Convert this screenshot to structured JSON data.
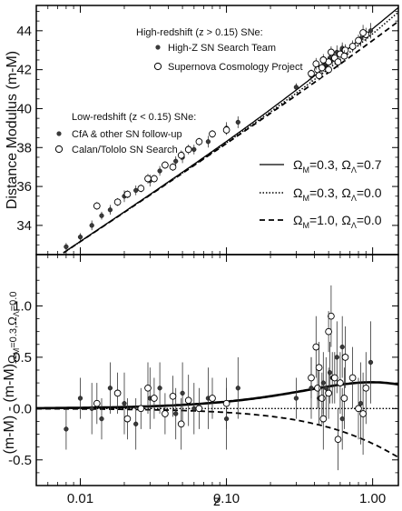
{
  "chart_data": [
    {
      "type": "scatter",
      "xscale": "log",
      "xlim": [
        0.005,
        1.5
      ],
      "ylim": [
        32.5,
        45.3
      ],
      "ylabel": "Distance Modulus (m-M)",
      "yticks": [
        34,
        36,
        38,
        40,
        42,
        44
      ],
      "grid": false,
      "legend_groups": [
        {
          "title": "High-redshift (z > 0.15) SNe:",
          "entries": [
            {
              "label": "High-Z SN Search Team",
              "marker": "filled-dot"
            },
            {
              "label": "Supernova Cosmology Project",
              "marker": "open-circle"
            }
          ]
        },
        {
          "title": "Low-redshift (z < 0.15) SNe:",
          "entries": [
            {
              "label": "CfA & other SN follow-up",
              "marker": "filled-dot"
            },
            {
              "label": "Calan/Tololo SN Search",
              "marker": "open-circle"
            }
          ]
        }
      ],
      "model_legend": [
        {
          "style": "solid",
          "label_parts": [
            "Ω",
            "M",
            "=0.3,  Ω",
            "Λ",
            "=0.7"
          ]
        },
        {
          "style": "dotted",
          "label_parts": [
            "Ω",
            "M",
            "=0.3,  Ω",
            "Λ",
            "=0.0"
          ]
        },
        {
          "style": "dashed",
          "label_parts": [
            "Ω",
            "M",
            "=1.0,  Ω",
            "Λ",
            "=0.0"
          ]
        }
      ],
      "series": [
        {
          "name": "High-Z SN Search Team",
          "marker": "filled-dot",
          "x": [
            0.43,
            0.48,
            0.51,
            0.57,
            0.62,
            0.97,
            0.3,
            0.38,
            0.46,
            0.53,
            0.62,
            0.83
          ],
          "y": [
            42.0,
            42.3,
            42.6,
            42.9,
            43.0,
            44.0,
            41.1,
            41.7,
            42.2,
            42.5,
            43.1,
            43.6
          ],
          "err": [
            0.25,
            0.3,
            0.3,
            0.35,
            0.3,
            0.4,
            0.2,
            0.3,
            0.3,
            0.25,
            0.3,
            0.4
          ]
        },
        {
          "name": "Supernova Cosmology Project",
          "marker": "open-circle",
          "x": [
            0.38,
            0.42,
            0.45,
            0.5,
            0.55,
            0.6,
            0.65,
            0.8,
            0.9,
            0.52,
            0.46,
            0.43,
            0.58,
            0.64,
            0.73,
            0.86,
            0.41,
            0.5
          ],
          "y": [
            41.8,
            42.0,
            42.1,
            42.4,
            42.6,
            42.8,
            43.0,
            43.5,
            43.8,
            42.9,
            42.5,
            41.7,
            42.4,
            42.7,
            43.2,
            43.9,
            42.3,
            42.0
          ],
          "err": [
            0.2,
            0.2,
            0.25,
            0.25,
            0.25,
            0.3,
            0.3,
            0.3,
            0.35,
            0.3,
            0.3,
            0.25,
            0.3,
            0.3,
            0.3,
            0.4,
            0.3,
            0.2
          ]
        },
        {
          "name": "CfA & other SN follow-up",
          "marker": "filled-dot",
          "x": [
            0.008,
            0.01,
            0.012,
            0.014,
            0.016,
            0.02,
            0.024,
            0.03,
            0.035,
            0.045,
            0.05,
            0.06,
            0.075,
            0.1,
            0.12
          ],
          "y": [
            32.9,
            33.4,
            34.0,
            34.5,
            34.8,
            35.5,
            35.8,
            36.3,
            36.8,
            37.3,
            37.5,
            37.9,
            38.3,
            39.0,
            39.3
          ],
          "err": [
            0.2,
            0.2,
            0.25,
            0.2,
            0.25,
            0.3,
            0.25,
            0.3,
            0.25,
            0.25,
            0.3,
            0.25,
            0.3,
            0.3,
            0.3
          ]
        },
        {
          "name": "Calan/Tololo SN Search",
          "marker": "open-circle",
          "x": [
            0.013,
            0.018,
            0.021,
            0.026,
            0.029,
            0.032,
            0.038,
            0.043,
            0.049,
            0.055,
            0.065,
            0.08,
            0.1
          ],
          "y": [
            35.0,
            35.2,
            35.6,
            35.9,
            36.4,
            36.4,
            37.1,
            37.0,
            37.6,
            37.9,
            38.3,
            38.7,
            38.9
          ],
          "err": [
            0.2,
            0.2,
            0.2,
            0.2,
            0.25,
            0.2,
            0.2,
            0.2,
            0.25,
            0.25,
            0.2,
            0.2,
            0.25
          ]
        }
      ]
    },
    {
      "type": "scatter",
      "xscale": "log",
      "xlim": [
        0.005,
        1.5
      ],
      "ylim": [
        -0.75,
        1.5
      ],
      "xlabel": "z",
      "xticks": [
        0.01,
        0.1,
        1.0
      ],
      "xtick_labels": [
        "0.01",
        "0.10",
        "1.00"
      ],
      "yticks": [
        -0.5,
        0.0,
        0.5,
        1.0
      ],
      "ytick_labels": [
        "-0.5",
        "0.0",
        "0.5",
        "1.0"
      ],
      "ylabel_parts": [
        "(m-M) - (m-M)",
        "Ω",
        "M",
        "=0.3,",
        "Ω",
        "Λ",
        "=0.0"
      ],
      "grid": false,
      "series": [
        {
          "name": "High-Z SN Search Team",
          "marker": "filled-dot",
          "x": [
            0.43,
            0.48,
            0.51,
            0.57,
            0.62,
            0.97,
            0.3,
            0.38,
            0.46,
            0.53,
            0.62,
            0.83
          ],
          "y": [
            0.1,
            0.2,
            0.35,
            0.5,
            -0.1,
            0.45,
            0.1,
            0.2,
            0.25,
            0.3,
            0.6,
            0.05
          ],
          "err": [
            0.25,
            0.3,
            0.3,
            0.35,
            0.3,
            0.4,
            0.2,
            0.3,
            0.3,
            0.25,
            0.3,
            0.4
          ]
        },
        {
          "name": "Supernova Cosmology Project",
          "marker": "open-circle",
          "x": [
            0.38,
            0.42,
            0.45,
            0.5,
            0.55,
            0.6,
            0.65,
            0.8,
            0.9,
            0.52,
            0.46,
            0.43,
            0.58,
            0.64,
            0.73,
            0.86,
            0.41,
            0.5
          ],
          "y": [
            0.3,
            0.2,
            0.1,
            0.15,
            0.3,
            0.25,
            0.5,
            0.0,
            0.2,
            0.9,
            -0.1,
            0.4,
            -0.3,
            0.1,
            0.3,
            -0.05,
            0.6,
            0.75
          ],
          "err": [
            0.2,
            0.2,
            0.25,
            0.25,
            0.25,
            0.3,
            0.3,
            0.3,
            0.35,
            0.3,
            0.3,
            0.25,
            0.3,
            0.3,
            0.3,
            0.4,
            0.3,
            0.2
          ]
        },
        {
          "name": "CfA & other SN follow-up",
          "marker": "filled-dot",
          "x": [
            0.008,
            0.01,
            0.012,
            0.014,
            0.016,
            0.02,
            0.024,
            0.03,
            0.035,
            0.045,
            0.05,
            0.06,
            0.075,
            0.1,
            0.12
          ],
          "y": [
            -0.2,
            0.1,
            0.0,
            -0.1,
            0.2,
            0.05,
            -0.15,
            0.1,
            0.2,
            -0.05,
            0.15,
            0.0,
            0.1,
            -0.1,
            0.2
          ],
          "err": [
            0.2,
            0.2,
            0.25,
            0.2,
            0.25,
            0.3,
            0.25,
            0.3,
            0.25,
            0.25,
            0.3,
            0.25,
            0.3,
            0.3,
            0.3
          ]
        },
        {
          "name": "Calan/Tololo SN Search",
          "marker": "open-circle",
          "x": [
            0.013,
            0.018,
            0.021,
            0.026,
            0.029,
            0.032,
            0.038,
            0.043,
            0.049,
            0.055,
            0.065,
            0.08,
            0.1
          ],
          "y": [
            0.05,
            0.15,
            -0.1,
            0.0,
            0.2,
            0.1,
            -0.05,
            0.12,
            -0.15,
            0.08,
            0.0,
            0.1,
            0.05
          ],
          "err": [
            0.2,
            0.2,
            0.2,
            0.2,
            0.25,
            0.2,
            0.2,
            0.2,
            0.25,
            0.25,
            0.2,
            0.2,
            0.25
          ]
        }
      ]
    }
  ]
}
